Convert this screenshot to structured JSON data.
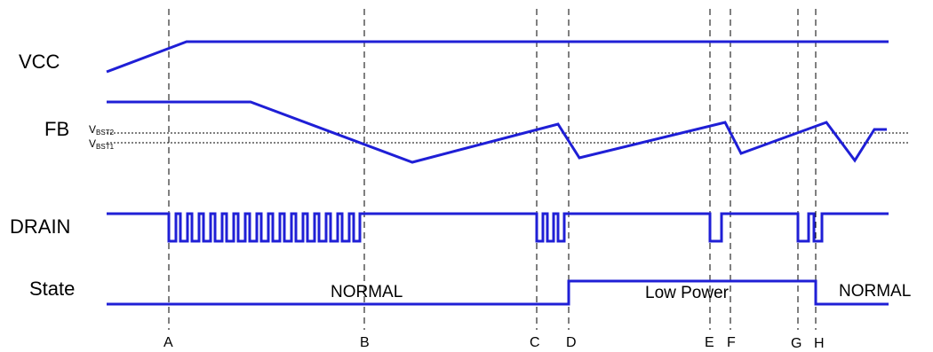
{
  "signals": {
    "vcc": "VCC",
    "fb": "FB",
    "drain": "DRAIN",
    "state": "State"
  },
  "references": {
    "vbst2": {
      "main": "V",
      "sub": "BST2"
    },
    "vbst1": {
      "main": "V",
      "sub": "BST1"
    }
  },
  "states": {
    "normal_1": "NORMAL",
    "low_power": "Low Power",
    "normal_2": "NORMAL"
  },
  "markers": [
    "A",
    "B",
    "C",
    "D",
    "E",
    "F",
    "G",
    "H"
  ],
  "colors": {
    "waveform": "#1f1fd6",
    "lines": "#000000"
  }
}
